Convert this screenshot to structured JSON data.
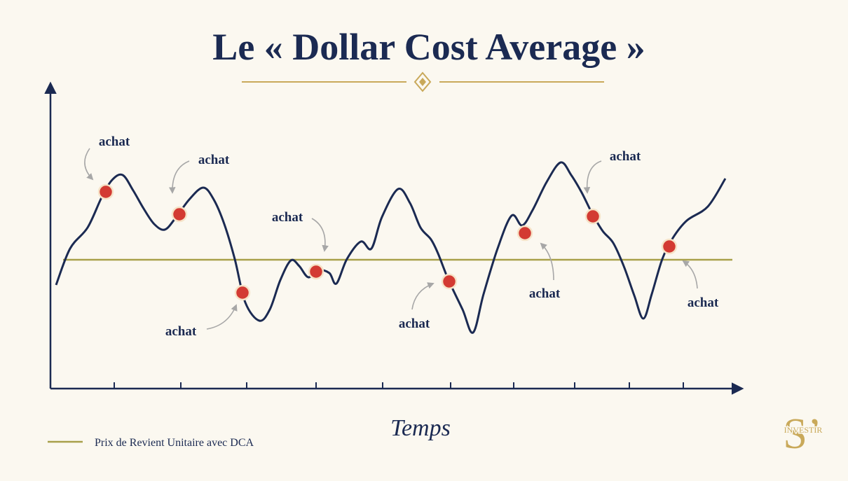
{
  "title": "Le « Dollar Cost Average »",
  "annotations": [
    "achat",
    "achat",
    "achat",
    "achat",
    "achat",
    "achat",
    "achat",
    "achat"
  ],
  "x_axis_label": "Temps",
  "legend": "Prix de Revient Unitaire avec DCA",
  "logo": {
    "letter": "S’",
    "text": "INVESTIR"
  }
}
